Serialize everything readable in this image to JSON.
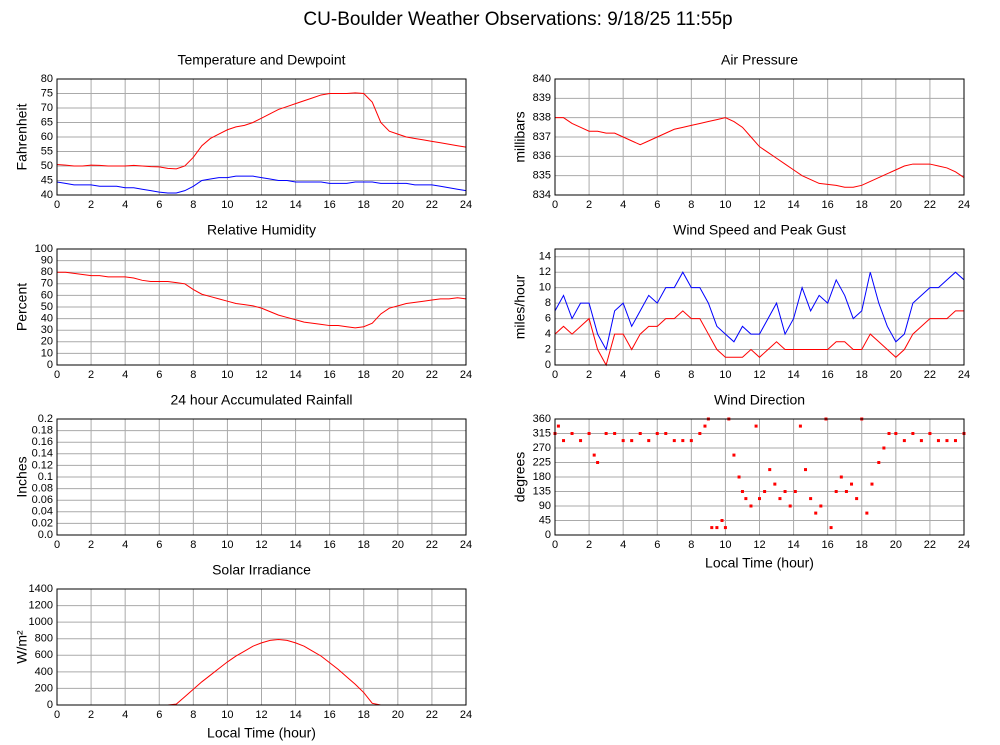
{
  "title": "CU-Boulder Weather Observations: 9/18/25 11:55p",
  "chart_data": [
    {
      "type": "line",
      "title": "Temperature and Dewpoint",
      "ylabel": "Fahrenheit",
      "x": [
        0,
        0.5,
        1,
        1.5,
        2,
        2.5,
        3,
        3.5,
        4,
        4.5,
        5,
        5.5,
        6,
        6.5,
        7,
        7.5,
        8,
        8.5,
        9,
        9.5,
        10,
        10.5,
        11,
        11.5,
        12,
        12.5,
        13,
        13.5,
        14,
        14.5,
        15,
        15.5,
        16,
        16.5,
        17,
        17.5,
        18,
        18.5,
        19,
        19.5,
        20,
        20.5,
        21,
        21.5,
        22,
        22.5,
        23,
        23.5,
        24
      ],
      "series": [
        {
          "color": "#ff0000",
          "values": [
            50.5,
            50.3,
            50,
            50,
            50.3,
            50.2,
            50,
            50,
            50,
            50.2,
            50,
            49.8,
            49.7,
            49.2,
            49,
            50,
            53,
            57,
            59.5,
            61,
            62.5,
            63.5,
            64,
            65,
            66.5,
            68,
            69.5,
            70.5,
            71.5,
            72.5,
            73.5,
            74.5,
            75,
            75,
            75,
            75.2,
            75,
            72,
            65,
            62,
            61,
            60,
            59.5,
            59,
            58.5,
            58,
            57.5,
            57,
            56.5
          ]
        },
        {
          "color": "#0000ff",
          "values": [
            44.5,
            44,
            43.5,
            43.5,
            43.5,
            43,
            43,
            43,
            42.5,
            42.5,
            42,
            41.5,
            41,
            40.7,
            40.7,
            41.5,
            43,
            45,
            45.5,
            46,
            46,
            46.5,
            46.5,
            46.5,
            46,
            45.5,
            45,
            45,
            44.5,
            44.5,
            44.5,
            44.5,
            44,
            44,
            44,
            44.5,
            44.5,
            44.5,
            44,
            44,
            44,
            44,
            43.5,
            43.5,
            43.5,
            43,
            42.5,
            42,
            41.5
          ]
        }
      ],
      "xlim": [
        0,
        24
      ],
      "xticks": [
        0,
        2,
        4,
        6,
        8,
        10,
        12,
        14,
        16,
        18,
        20,
        22,
        24
      ],
      "ylim": [
        40,
        80
      ],
      "yticks": [
        40,
        45,
        50,
        55,
        60,
        65,
        70,
        75,
        80
      ],
      "grid": true
    },
    {
      "type": "line",
      "title": "Air Pressure",
      "ylabel": "millibars",
      "x": [
        0,
        0.5,
        1,
        1.5,
        2,
        2.5,
        3,
        3.5,
        4,
        4.5,
        5,
        5.5,
        6,
        6.5,
        7,
        7.5,
        8,
        8.5,
        9,
        9.5,
        10,
        10.5,
        11,
        11.5,
        12,
        12.5,
        13,
        13.5,
        14,
        14.5,
        15,
        15.5,
        16,
        16.5,
        17,
        17.5,
        18,
        18.5,
        19,
        19.5,
        20,
        20.5,
        21,
        21.5,
        22,
        22.5,
        23,
        23.5,
        24
      ],
      "series": [
        {
          "color": "#ff0000",
          "values": [
            838,
            838,
            837.7,
            837.5,
            837.3,
            837.3,
            837.2,
            837.2,
            837,
            836.8,
            836.6,
            836.8,
            837,
            837.2,
            837.4,
            837.5,
            837.6,
            837.7,
            837.8,
            837.9,
            838,
            837.8,
            837.5,
            837,
            836.5,
            836.2,
            835.9,
            835.6,
            835.3,
            835,
            834.8,
            834.6,
            834.55,
            834.5,
            834.4,
            834.4,
            834.5,
            834.7,
            834.9,
            835.1,
            835.3,
            835.5,
            835.6,
            835.6,
            835.6,
            835.5,
            835.4,
            835.2,
            834.9
          ]
        }
      ],
      "xlim": [
        0,
        24
      ],
      "xticks": [
        0,
        2,
        4,
        6,
        8,
        10,
        12,
        14,
        16,
        18,
        20,
        22,
        24
      ],
      "ylim": [
        834,
        840
      ],
      "yticks": [
        834,
        835,
        836,
        837,
        838,
        839,
        840
      ],
      "grid": true
    },
    {
      "type": "line",
      "title": "Relative Humidity",
      "ylabel": "Percent",
      "x": [
        0,
        0.5,
        1,
        1.5,
        2,
        2.5,
        3,
        3.5,
        4,
        4.5,
        5,
        5.5,
        6,
        6.5,
        7,
        7.5,
        8,
        8.5,
        9,
        9.5,
        10,
        10.5,
        11,
        11.5,
        12,
        12.5,
        13,
        13.5,
        14,
        14.5,
        15,
        15.5,
        16,
        16.5,
        17,
        17.5,
        18,
        18.5,
        19,
        19.5,
        20,
        20.5,
        21,
        21.5,
        22,
        22.5,
        23,
        23.5,
        24
      ],
      "series": [
        {
          "color": "#ff0000",
          "values": [
            80,
            80,
            79,
            78,
            77,
            77,
            76,
            76,
            76,
            75,
            73,
            72,
            72,
            72,
            71,
            70,
            65,
            61,
            59,
            57,
            55,
            53,
            52,
            51,
            49,
            46,
            43,
            41,
            39,
            37,
            36,
            35,
            34,
            34,
            33,
            32,
            33,
            36,
            44,
            49,
            51,
            53,
            54,
            55,
            56,
            57,
            57,
            58,
            57
          ]
        }
      ],
      "xlim": [
        0,
        24
      ],
      "xticks": [
        0,
        2,
        4,
        6,
        8,
        10,
        12,
        14,
        16,
        18,
        20,
        22,
        24
      ],
      "ylim": [
        0,
        100
      ],
      "yticks": [
        0,
        10,
        20,
        30,
        40,
        50,
        60,
        70,
        80,
        90,
        100
      ],
      "grid": true
    },
    {
      "type": "line",
      "title": "Wind Speed and Peak Gust",
      "ylabel": "miles/hour",
      "x": [
        0,
        0.5,
        1,
        1.5,
        2,
        2.5,
        3,
        3.5,
        4,
        4.5,
        5,
        5.5,
        6,
        6.5,
        7,
        7.5,
        8,
        8.5,
        9,
        9.5,
        10,
        10.5,
        11,
        11.5,
        12,
        12.5,
        13,
        13.5,
        14,
        14.5,
        15,
        15.5,
        16,
        16.5,
        17,
        17.5,
        18,
        18.5,
        19,
        19.5,
        20,
        20.5,
        21,
        21.5,
        22,
        22.5,
        23,
        23.5,
        24
      ],
      "series": [
        {
          "color": "#0000ff",
          "values": [
            7,
            9,
            6,
            8,
            8,
            4,
            2,
            7,
            8,
            5,
            7,
            9,
            8,
            10,
            10,
            12,
            10,
            10,
            8,
            5,
            4,
            3,
            5,
            4,
            4,
            6,
            8,
            4,
            6,
            10,
            7,
            9,
            8,
            11,
            9,
            6,
            7,
            12,
            8,
            5,
            3,
            4,
            8,
            9,
            10,
            10,
            11,
            12,
            11
          ]
        },
        {
          "color": "#ff0000",
          "values": [
            4,
            5,
            4,
            5,
            6,
            2,
            0,
            4,
            4,
            2,
            4,
            5,
            5,
            6,
            6,
            7,
            6,
            6,
            4,
            2,
            1,
            1,
            1,
            2,
            1,
            2,
            3,
            2,
            2,
            2,
            2,
            2,
            2,
            3,
            3,
            2,
            2,
            4,
            3,
            2,
            1,
            2,
            4,
            5,
            6,
            6,
            6,
            7,
            7
          ]
        }
      ],
      "xlim": [
        0,
        24
      ],
      "xticks": [
        0,
        2,
        4,
        6,
        8,
        10,
        12,
        14,
        16,
        18,
        20,
        22,
        24
      ],
      "ylim": [
        0,
        15
      ],
      "yticks": [
        0,
        2,
        4,
        6,
        8,
        10,
        12,
        14
      ],
      "grid": true
    },
    {
      "type": "line",
      "title": "24 hour Accumulated Rainfall",
      "ylabel": "Inches",
      "x": [
        0,
        24
      ],
      "series": [
        {
          "color": "#ff0000",
          "values": [
            0,
            0
          ]
        }
      ],
      "xlim": [
        0,
        24
      ],
      "xticks": [
        0,
        2,
        4,
        6,
        8,
        10,
        12,
        14,
        16,
        18,
        20,
        22,
        24
      ],
      "ylim": [
        0,
        0.2
      ],
      "yticks": [
        {
          "value": 0,
          "label": "0.0"
        },
        0.02,
        0.04,
        0.06,
        0.08,
        0.1,
        0.12,
        0.14,
        0.16,
        0.18,
        0.2
      ],
      "grid": true
    },
    {
      "type": "scatter",
      "title": "Wind Direction",
      "ylabel": "degrees",
      "xlabel": "Local Time (hour)",
      "x": [
        0,
        0.2,
        0.5,
        1,
        1.5,
        2,
        2.3,
        2.5,
        3,
        3.5,
        4,
        4.5,
        5,
        5.5,
        6,
        6.5,
        7,
        7.5,
        8,
        8.5,
        8.8,
        9,
        9.2,
        9.5,
        9.8,
        10,
        10.2,
        10.5,
        10.8,
        11,
        11.2,
        11.5,
        11.8,
        12,
        12.3,
        12.6,
        12.9,
        13.2,
        13.5,
        13.8,
        14.1,
        14.4,
        14.7,
        15,
        15.3,
        15.6,
        15.9,
        16.2,
        16.5,
        16.8,
        17.1,
        17.4,
        17.7,
        18,
        18.3,
        18.6,
        19,
        19.3,
        19.6,
        20,
        20.5,
        21,
        21.5,
        22,
        22.5,
        23,
        23.5,
        24
      ],
      "values": [
        315,
        338,
        293,
        315,
        293,
        315,
        248,
        225,
        315,
        315,
        293,
        293,
        315,
        293,
        315,
        315,
        293,
        293,
        293,
        315,
        338,
        360,
        23,
        23,
        45,
        23,
        360,
        248,
        180,
        135,
        113,
        90,
        338,
        113,
        135,
        203,
        158,
        113,
        135,
        90,
        135,
        338,
        203,
        113,
        68,
        90,
        360,
        23,
        135,
        180,
        135,
        158,
        113,
        360,
        68,
        158,
        225,
        270,
        315,
        315,
        293,
        315,
        293,
        315,
        293,
        293,
        293,
        315
      ],
      "color": "#ff0000",
      "xlim": [
        0,
        24
      ],
      "xticks": [
        0,
        2,
        4,
        6,
        8,
        10,
        12,
        14,
        16,
        18,
        20,
        22,
        24
      ],
      "ylim": [
        0,
        360
      ],
      "yticks": [
        0,
        45,
        90,
        135,
        180,
        225,
        270,
        315,
        360
      ],
      "grid": true
    },
    {
      "type": "line",
      "title": "Solar Irradiance",
      "ylabel": "W/m²",
      "xlabel": "Local Time (hour)",
      "x": [
        0,
        0.5,
        1,
        1.5,
        2,
        2.5,
        3,
        3.5,
        4,
        4.5,
        5,
        5.5,
        6,
        6.5,
        7,
        7.5,
        8,
        8.5,
        9,
        9.5,
        10,
        10.5,
        11,
        11.5,
        12,
        12.5,
        13,
        13.5,
        14,
        14.5,
        15,
        15.5,
        16,
        16.5,
        17,
        17.5,
        18,
        18.5,
        19,
        19.5,
        20,
        20.5,
        21,
        21.5,
        22,
        22.5,
        23,
        23.5,
        24
      ],
      "series": [
        {
          "color": "#ff0000",
          "values": [
            0,
            0,
            0,
            0,
            0,
            0,
            0,
            0,
            0,
            0,
            0,
            0,
            0,
            0,
            10,
            100,
            190,
            280,
            360,
            440,
            520,
            590,
            650,
            710,
            750,
            780,
            790,
            780,
            750,
            710,
            650,
            590,
            510,
            430,
            340,
            250,
            150,
            20,
            0,
            0,
            0,
            0,
            0,
            0,
            0,
            0,
            0,
            0,
            0
          ]
        }
      ],
      "xlim": [
        0,
        24
      ],
      "xticks": [
        0,
        2,
        4,
        6,
        8,
        10,
        12,
        14,
        16,
        18,
        20,
        22,
        24
      ],
      "ylim": [
        0,
        1400
      ],
      "yticks": [
        0,
        200,
        400,
        600,
        800,
        1000,
        1200,
        1400
      ],
      "grid": true
    }
  ]
}
